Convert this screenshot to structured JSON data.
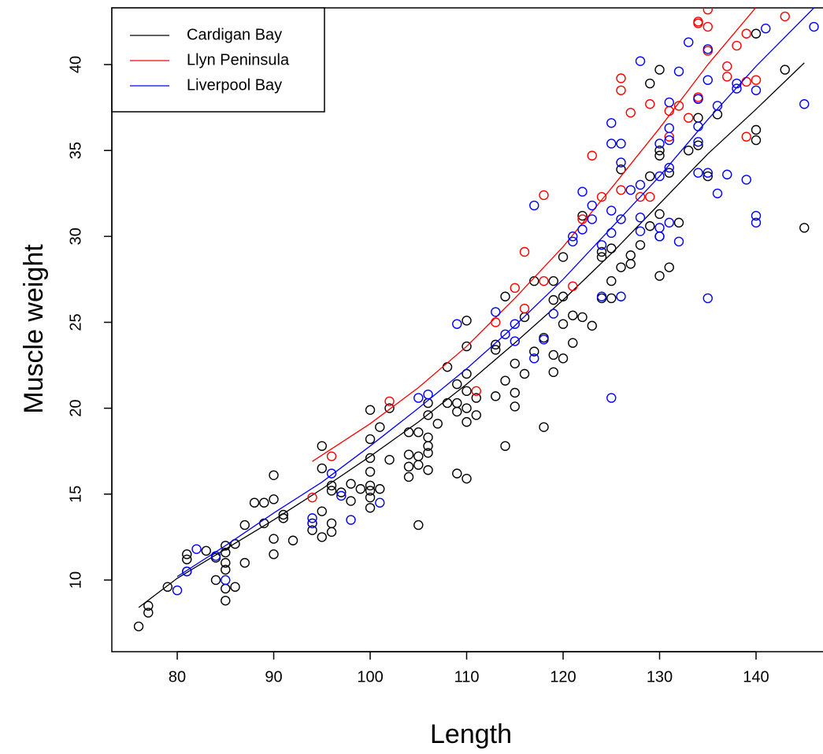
{
  "chart_data": {
    "type": "scatter",
    "x_label": "Length",
    "y_label": "Muscle weight",
    "legend": "top-left",
    "xlim": [
      73.22,
      146.94
    ],
    "ylim": [
      5.83,
      43.3
    ],
    "xticks": [
      80,
      90,
      100,
      110,
      120,
      130,
      140
    ],
    "yticks": [
      10,
      15,
      20,
      25,
      30,
      35,
      40
    ],
    "series": [
      {
        "name": "Cardigan Bay",
        "color": "#000000",
        "x": [
          76,
          77,
          77,
          79,
          81,
          81,
          81,
          83,
          84,
          84,
          85,
          85,
          85,
          85,
          85,
          85,
          86,
          86,
          87,
          87,
          88,
          89,
          89,
          90,
          90,
          90,
          90,
          91,
          91,
          92,
          94,
          94,
          95,
          95,
          95,
          95,
          96,
          96,
          96,
          96,
          97,
          98,
          98,
          99,
          100,
          100,
          100,
          100,
          100,
          100,
          100,
          100,
          101,
          101,
          102,
          102,
          104,
          104,
          104,
          104,
          105,
          105,
          105,
          105,
          106,
          106,
          106,
          106,
          106,
          106,
          107,
          108,
          108,
          109,
          109,
          109,
          109,
          110,
          110,
          110,
          110,
          110,
          110,
          110,
          111,
          111,
          113,
          113,
          113,
          114,
          114,
          114,
          115,
          115,
          115,
          116,
          116,
          117,
          117,
          118,
          118,
          119,
          119,
          119,
          119,
          120,
          120,
          120,
          120,
          121,
          121,
          122,
          122,
          123,
          124,
          124,
          124,
          125,
          125,
          125,
          126,
          126,
          127,
          127,
          128,
          129,
          129,
          129,
          130,
          130,
          130,
          130,
          130,
          130,
          131,
          131,
          132,
          133,
          134,
          134,
          134,
          135,
          136,
          140,
          140,
          140,
          143,
          145
        ],
        "values": [
          7.3,
          8.1,
          8.5,
          9.6,
          10.5,
          11.2,
          11.5,
          11.7,
          10.0,
          11.3,
          8.8,
          9.5,
          10.6,
          11.0,
          11.6,
          12.0,
          9.6,
          12.1,
          11.0,
          13.2,
          14.5,
          14.5,
          13.3,
          12.4,
          11.5,
          14.7,
          16.1,
          13.6,
          13.8,
          12.3,
          12.9,
          13.3,
          12.5,
          14.0,
          16.5,
          17.8,
          12.8,
          13.3,
          15.2,
          15.5,
          15.1,
          14.6,
          15.6,
          15.3,
          14.2,
          14.8,
          15.2,
          15.5,
          16.3,
          17.1,
          18.2,
          19.9,
          15.3,
          18.9,
          17.0,
          20.0,
          16.0,
          16.6,
          17.3,
          18.6,
          13.2,
          16.7,
          17.2,
          18.6,
          16.4,
          17.4,
          17.8,
          18.3,
          19.6,
          20.3,
          19.1,
          20.3,
          22.4,
          16.2,
          19.8,
          20.3,
          21.4,
          15.9,
          19.2,
          20.0,
          21.0,
          22.0,
          23.6,
          25.1,
          19.6,
          20.6,
          20.7,
          23.4,
          23.7,
          17.8,
          21.6,
          26.5,
          20.1,
          20.9,
          22.6,
          22.0,
          25.3,
          23.3,
          27.4,
          18.9,
          24.1,
          22.1,
          23.1,
          26.3,
          27.4,
          22.9,
          24.9,
          26.5,
          28.8,
          23.8,
          25.4,
          25.3,
          31.2,
          24.8,
          26.4,
          28.8,
          29.1,
          26.4,
          27.4,
          29.3,
          28.2,
          33.9,
          28.4,
          28.9,
          29.5,
          30.6,
          33.5,
          38.9,
          27.7,
          30.0,
          31.3,
          34.7,
          35.0,
          39.7,
          28.2,
          33.7,
          30.8,
          35.0,
          35.3,
          36.9,
          38.0,
          33.5,
          37.1,
          35.6,
          36.2,
          41.8,
          39.7,
          30.5
        ],
        "fit_x": [
          76,
          80,
          85,
          90,
          95,
          100,
          105,
          110,
          115,
          120,
          125,
          130,
          135,
          140,
          145
        ],
        "fit_values": [
          8.4,
          10.1,
          11.8,
          13.5,
          15.3,
          17.2,
          19.2,
          21.4,
          23.8,
          26.3,
          29.0,
          31.9,
          34.8,
          37.4,
          40.1
        ]
      },
      {
        "name": "Llyn Peninsula",
        "color": "#ff0000",
        "x": [
          94,
          96,
          102,
          111,
          113,
          115,
          116,
          116,
          118,
          118,
          121,
          122,
          123,
          124,
          126,
          126,
          126,
          127,
          128,
          129,
          129,
          131,
          131,
          132,
          133,
          134,
          134,
          134,
          135,
          135,
          135,
          137,
          137,
          138,
          139,
          139,
          139,
          140,
          143
        ],
        "values": [
          14.8,
          17.2,
          20.4,
          21.0,
          25.0,
          27.0,
          25.8,
          29.1,
          27.4,
          32.4,
          27.1,
          31.0,
          34.7,
          32.3,
          39.2,
          38.5,
          32.7,
          37.2,
          32.3,
          32.3,
          37.7,
          35.8,
          37.3,
          37.6,
          36.9,
          38.1,
          42.4,
          42.5,
          40.8,
          42.2,
          43.2,
          39.3,
          39.9,
          41.1,
          35.8,
          39.0,
          41.8,
          39.1,
          42.8
        ],
        "fit_x": [
          94,
          100,
          105,
          110,
          115,
          120,
          125,
          130,
          135,
          141
        ],
        "fit_values": [
          16.9,
          19.1,
          21.2,
          23.6,
          26.4,
          29.4,
          32.8,
          36.3,
          40.0,
          44.0
        ]
      },
      {
        "name": "Liverpool Bay",
        "color": "#0000ff",
        "x": [
          80,
          81,
          82,
          84,
          85,
          94,
          94,
          96,
          97,
          98,
          101,
          105,
          106,
          109,
          113,
          114,
          115,
          115,
          117,
          117,
          118,
          119,
          121,
          121,
          122,
          122,
          123,
          123,
          124,
          124,
          125,
          125,
          125,
          125,
          125,
          126,
          126,
          126,
          126,
          127,
          128,
          128,
          128,
          128,
          130,
          130,
          130,
          130,
          131,
          131,
          131,
          131,
          131,
          132,
          132,
          133,
          134,
          134,
          134,
          134,
          135,
          135,
          135,
          135,
          136,
          136,
          137,
          138,
          138,
          139,
          140,
          140,
          140,
          141,
          145,
          146
        ],
        "values": [
          9.4,
          10.5,
          11.8,
          11.4,
          10.0,
          13.3,
          13.6,
          16.2,
          14.9,
          13.5,
          14.5,
          20.6,
          20.8,
          24.9,
          25.6,
          24.3,
          23.9,
          24.9,
          31.8,
          22.9,
          24.0,
          25.5,
          29.7,
          30.0,
          30.4,
          32.6,
          31.0,
          31.8,
          29.5,
          26.5,
          20.6,
          30.2,
          31.5,
          35.4,
          36.6,
          26.5,
          31.0,
          34.3,
          35.4,
          32.7,
          30.3,
          31.1,
          33.0,
          40.2,
          30.0,
          30.5,
          33.5,
          35.4,
          30.8,
          34.0,
          35.6,
          36.3,
          37.8,
          29.7,
          39.6,
          41.3,
          33.7,
          35.5,
          36.4,
          38.0,
          26.4,
          33.7,
          39.1,
          40.9,
          32.5,
          37.6,
          33.6,
          38.6,
          38.9,
          33.3,
          30.8,
          31.2,
          38.5,
          42.1,
          37.7,
          42.2
        ],
        "fit_x": [
          80,
          85,
          90,
          95,
          100,
          105,
          110,
          115,
          120,
          125,
          130,
          135,
          140,
          146
        ],
        "fit_values": [
          10.2,
          12.0,
          13.9,
          15.7,
          17.8,
          20.0,
          22.3,
          24.8,
          27.5,
          30.5,
          33.5,
          36.8,
          39.9,
          43.3
        ]
      }
    ]
  }
}
